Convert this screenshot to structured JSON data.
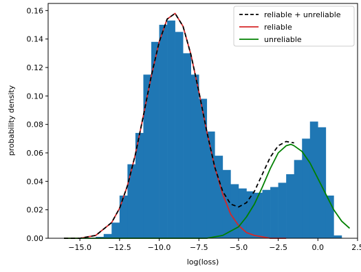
{
  "chart_data": {
    "type": "histogram",
    "xlabel": "log(loss)",
    "ylabel": "probability density",
    "xlim": [
      -17.0,
      2.5
    ],
    "ylim": [
      0.0,
      0.165
    ],
    "x_ticks": [
      -15.0,
      -12.5,
      -10.0,
      -7.5,
      -5.0,
      -2.5,
      0.0,
      2.5
    ],
    "x_tick_labels": [
      "−15.0",
      "−12.5",
      "−10.0",
      "−7.5",
      "−5.0",
      "−2.5",
      "0.0",
      "2.5"
    ],
    "y_ticks": [
      0.0,
      0.02,
      0.04,
      0.06,
      0.08,
      0.1,
      0.12,
      0.14,
      0.16
    ],
    "y_tick_labels": [
      "0.00",
      "0.02",
      "0.04",
      "0.06",
      "0.08",
      "0.10",
      "0.12",
      "0.14",
      "0.16"
    ],
    "legend_position": "top-right",
    "histogram": {
      "color": "#1f77b4",
      "bins": [
        {
          "x": -13.75,
          "y": 0.001
        },
        {
          "x": -13.25,
          "y": 0.003
        },
        {
          "x": -12.75,
          "y": 0.011
        },
        {
          "x": -12.25,
          "y": 0.03
        },
        {
          "x": -11.75,
          "y": 0.052
        },
        {
          "x": -11.25,
          "y": 0.074
        },
        {
          "x": -10.75,
          "y": 0.115
        },
        {
          "x": -10.25,
          "y": 0.138
        },
        {
          "x": -9.75,
          "y": 0.15
        },
        {
          "x": -9.25,
          "y": 0.153
        },
        {
          "x": -8.75,
          "y": 0.145
        },
        {
          "x": -8.25,
          "y": 0.13
        },
        {
          "x": -7.75,
          "y": 0.115
        },
        {
          "x": -7.25,
          "y": 0.098
        },
        {
          "x": -6.75,
          "y": 0.075
        },
        {
          "x": -6.25,
          "y": 0.058
        },
        {
          "x": -5.75,
          "y": 0.048
        },
        {
          "x": -5.25,
          "y": 0.038
        },
        {
          "x": -4.75,
          "y": 0.035
        },
        {
          "x": -4.25,
          "y": 0.033
        },
        {
          "x": -3.75,
          "y": 0.032
        },
        {
          "x": -3.25,
          "y": 0.034
        },
        {
          "x": -2.75,
          "y": 0.036
        },
        {
          "x": -2.25,
          "y": 0.039
        },
        {
          "x": -1.75,
          "y": 0.045
        },
        {
          "x": -1.25,
          "y": 0.055
        },
        {
          "x": -0.75,
          "y": 0.07
        },
        {
          "x": -0.25,
          "y": 0.082
        },
        {
          "x": 0.25,
          "y": 0.078
        },
        {
          "x": 0.75,
          "y": 0.03
        },
        {
          "x": 1.25,
          "y": 0.002
        }
      ]
    },
    "series": [
      {
        "name": "reliable + unreliable",
        "color": "#000000",
        "style": "dashed",
        "x": [
          -16.0,
          -15.0,
          -14.0,
          -13.0,
          -12.5,
          -12.0,
          -11.5,
          -11.0,
          -10.5,
          -10.0,
          -9.5,
          -9.0,
          -8.5,
          -8.0,
          -7.5,
          -7.0,
          -6.5,
          -6.0,
          -5.5,
          -5.0,
          -4.5,
          -4.0,
          -3.5,
          -3.0,
          -2.5,
          -2.0,
          -1.5
        ],
        "y": [
          0.0,
          0.0,
          0.002,
          0.011,
          0.021,
          0.037,
          0.059,
          0.086,
          0.114,
          0.138,
          0.154,
          0.158,
          0.149,
          0.129,
          0.103,
          0.075,
          0.05,
          0.033,
          0.024,
          0.022,
          0.025,
          0.033,
          0.045,
          0.057,
          0.065,
          0.068,
          0.067
        ]
      },
      {
        "name": "reliable",
        "color": "#d62728",
        "style": "solid",
        "x": [
          -16.0,
          -15.0,
          -14.0,
          -13.0,
          -12.5,
          -12.0,
          -11.5,
          -11.0,
          -10.5,
          -10.0,
          -9.5,
          -9.0,
          -8.5,
          -8.0,
          -7.5,
          -7.0,
          -6.5,
          -6.0,
          -5.5,
          -5.0,
          -4.5,
          -4.0,
          -3.5,
          -3.0,
          -2.5,
          -2.0
        ],
        "y": [
          0.0,
          0.0,
          0.002,
          0.011,
          0.021,
          0.037,
          0.059,
          0.086,
          0.114,
          0.138,
          0.154,
          0.158,
          0.149,
          0.129,
          0.103,
          0.075,
          0.05,
          0.031,
          0.017,
          0.009,
          0.004,
          0.002,
          0.001,
          0.0,
          0.0,
          0.0
        ]
      },
      {
        "name": "unreliable",
        "color": "#008000",
        "style": "solid",
        "x": [
          -16.0,
          -10.0,
          -8.0,
          -7.0,
          -6.0,
          -5.0,
          -4.5,
          -4.0,
          -3.5,
          -3.0,
          -2.5,
          -2.0,
          -1.7,
          -1.5,
          -1.0,
          -0.5,
          0.0,
          0.5,
          1.0,
          1.5,
          2.0
        ],
        "y": [
          0.0,
          0.0,
          0.0,
          0.0,
          0.002,
          0.008,
          0.015,
          0.024,
          0.036,
          0.049,
          0.06,
          0.065,
          0.066,
          0.065,
          0.061,
          0.053,
          0.042,
          0.031,
          0.02,
          0.012,
          0.007
        ]
      }
    ]
  }
}
